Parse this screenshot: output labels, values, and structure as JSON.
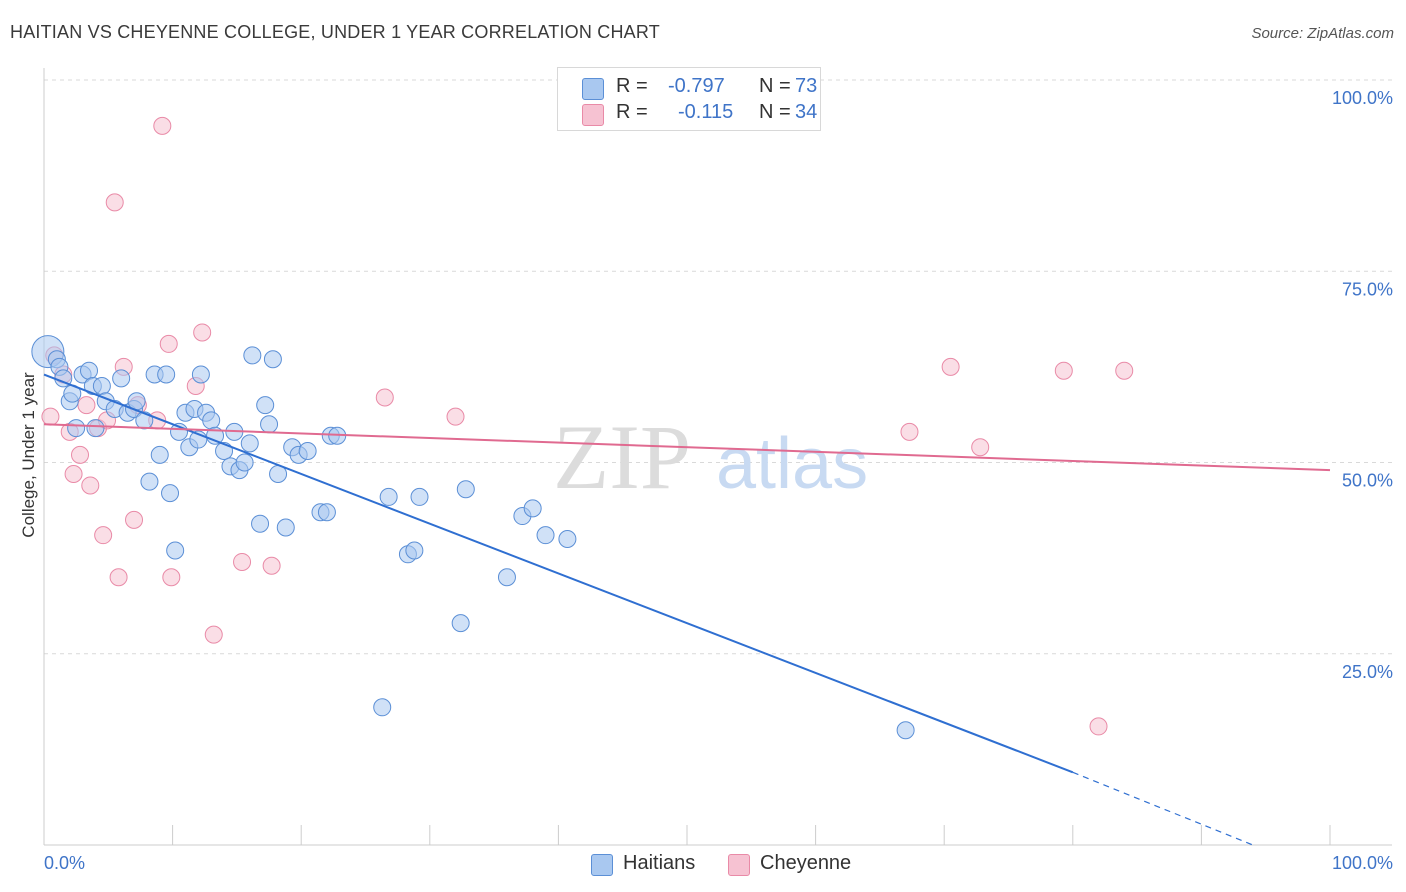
{
  "title": "HAITIAN VS CHEYENNE COLLEGE, UNDER 1 YEAR CORRELATION CHART",
  "source": "Source: ZipAtlas.com",
  "watermark": {
    "zip": "ZIP",
    "atlas": "atlas"
  },
  "colors": {
    "haitians_fill": "#a9c8f0",
    "haitians_stroke": "#5b8fd6",
    "haitians_line": "#2f6fd1",
    "cheyenne_fill": "#f6c2d2",
    "cheyenne_stroke": "#e98aa7",
    "cheyenne_line": "#e06a90",
    "tick_text": "#3f74c8",
    "grid": "#d9d9d9"
  },
  "legend": {
    "rows": [
      {
        "r_label": "R =",
        "r_value": "-0.797",
        "n_label": "N =",
        "n_value": "73"
      },
      {
        "r_label": "R =",
        "r_value": "-0.115",
        "n_label": "N =",
        "n_value": "34"
      }
    ]
  },
  "bottom_legend": {
    "haitians": "Haitians",
    "cheyenne": "Cheyenne"
  },
  "chart_data": {
    "type": "scatter",
    "title": "HAITIAN VS CHEYENNE COLLEGE, UNDER 1 YEAR CORRELATION CHART",
    "xlabel": "",
    "ylabel": "College, Under 1 year",
    "xlim": [
      0,
      100
    ],
    "ylim": [
      0,
      100
    ],
    "x_tick_labels": {
      "left": "0.0%",
      "right": "100.0%"
    },
    "y_ticks": [
      {
        "value": 100,
        "label": "100.0%"
      },
      {
        "value": 75,
        "label": "75.0%"
      },
      {
        "value": 50,
        "label": "50.0%"
      },
      {
        "value": 25,
        "label": "25.0%"
      }
    ],
    "series": [
      {
        "name": "Haitians",
        "r": -0.797,
        "n": 73,
        "trend": {
          "x_start": 0,
          "y_start": 61.5,
          "x_solid_end": 80,
          "y_solid_end": 9.5,
          "x_dash_end": 94,
          "y_dash_end": 0
        },
        "points": [
          {
            "x": 0.3,
            "y": 64.5,
            "big": true
          },
          {
            "x": 1.0,
            "y": 63.5
          },
          {
            "x": 1.2,
            "y": 62.5
          },
          {
            "x": 1.5,
            "y": 61.0
          },
          {
            "x": 2.0,
            "y": 58.0
          },
          {
            "x": 2.2,
            "y": 59.0
          },
          {
            "x": 2.5,
            "y": 54.5
          },
          {
            "x": 3.0,
            "y": 61.5
          },
          {
            "x": 3.5,
            "y": 62.0
          },
          {
            "x": 3.8,
            "y": 60.0
          },
          {
            "x": 4.0,
            "y": 54.5
          },
          {
            "x": 4.5,
            "y": 60.0
          },
          {
            "x": 4.8,
            "y": 58.0
          },
          {
            "x": 5.5,
            "y": 57.0
          },
          {
            "x": 6.0,
            "y": 61.0
          },
          {
            "x": 6.5,
            "y": 56.5
          },
          {
            "x": 7.0,
            "y": 57.0
          },
          {
            "x": 7.2,
            "y": 58.0
          },
          {
            "x": 7.8,
            "y": 55.5
          },
          {
            "x": 8.2,
            "y": 47.5
          },
          {
            "x": 8.6,
            "y": 61.5
          },
          {
            "x": 9.0,
            "y": 51.0
          },
          {
            "x": 9.5,
            "y": 61.5
          },
          {
            "x": 9.8,
            "y": 46.0
          },
          {
            "x": 10.2,
            "y": 38.5
          },
          {
            "x": 10.5,
            "y": 54.0
          },
          {
            "x": 11.0,
            "y": 56.5
          },
          {
            "x": 11.3,
            "y": 52.0
          },
          {
            "x": 11.7,
            "y": 57.0
          },
          {
            "x": 12.0,
            "y": 53.0
          },
          {
            "x": 12.2,
            "y": 61.5
          },
          {
            "x": 12.6,
            "y": 56.5
          },
          {
            "x": 13.0,
            "y": 55.5
          },
          {
            "x": 13.3,
            "y": 53.5
          },
          {
            "x": 14.0,
            "y": 51.5
          },
          {
            "x": 14.5,
            "y": 49.5
          },
          {
            "x": 14.8,
            "y": 54.0
          },
          {
            "x": 15.2,
            "y": 49.0
          },
          {
            "x": 15.6,
            "y": 50.0
          },
          {
            "x": 16.0,
            "y": 52.5
          },
          {
            "x": 16.2,
            "y": 64.0
          },
          {
            "x": 16.8,
            "y": 42.0
          },
          {
            "x": 17.2,
            "y": 57.5
          },
          {
            "x": 17.5,
            "y": 55.0
          },
          {
            "x": 17.8,
            "y": 63.5
          },
          {
            "x": 18.2,
            "y": 48.5
          },
          {
            "x": 18.8,
            "y": 41.5
          },
          {
            "x": 19.3,
            "y": 52.0
          },
          {
            "x": 19.8,
            "y": 51.0
          },
          {
            "x": 20.5,
            "y": 51.5
          },
          {
            "x": 21.5,
            "y": 43.5
          },
          {
            "x": 22.0,
            "y": 43.5
          },
          {
            "x": 22.3,
            "y": 53.5
          },
          {
            "x": 22.8,
            "y": 53.5
          },
          {
            "x": 26.3,
            "y": 18.0
          },
          {
            "x": 26.8,
            "y": 45.5
          },
          {
            "x": 28.3,
            "y": 38.0
          },
          {
            "x": 28.8,
            "y": 38.5
          },
          {
            "x": 29.2,
            "y": 45.5
          },
          {
            "x": 32.4,
            "y": 29.0
          },
          {
            "x": 32.8,
            "y": 46.5
          },
          {
            "x": 36.0,
            "y": 35.0
          },
          {
            "x": 37.2,
            "y": 43.0
          },
          {
            "x": 38.0,
            "y": 44.0
          },
          {
            "x": 39.0,
            "y": 40.5
          },
          {
            "x": 40.7,
            "y": 40.0
          },
          {
            "x": 67.0,
            "y": 15.0
          }
        ]
      },
      {
        "name": "Cheyenne",
        "r": -0.115,
        "n": 34,
        "trend": {
          "x_start": 0,
          "y_start": 55.0,
          "x_end": 100,
          "y_end": 49.0
        },
        "points": [
          {
            "x": 0.5,
            "y": 56.0
          },
          {
            "x": 0.8,
            "y": 64.0
          },
          {
            "x": 1.5,
            "y": 61.5
          },
          {
            "x": 2.0,
            "y": 54.0
          },
          {
            "x": 2.3,
            "y": 48.5
          },
          {
            "x": 2.8,
            "y": 51.0
          },
          {
            "x": 3.3,
            "y": 57.5
          },
          {
            "x": 3.6,
            "y": 47.0
          },
          {
            "x": 4.2,
            "y": 54.5
          },
          {
            "x": 4.6,
            "y": 40.5
          },
          {
            "x": 4.9,
            "y": 55.5
          },
          {
            "x": 5.5,
            "y": 84.0
          },
          {
            "x": 5.8,
            "y": 35.0
          },
          {
            "x": 6.2,
            "y": 62.5
          },
          {
            "x": 7.0,
            "y": 42.5
          },
          {
            "x": 7.3,
            "y": 57.5
          },
          {
            "x": 8.8,
            "y": 55.5
          },
          {
            "x": 9.2,
            "y": 94.0
          },
          {
            "x": 9.7,
            "y": 65.5
          },
          {
            "x": 9.9,
            "y": 35.0
          },
          {
            "x": 11.8,
            "y": 60.0
          },
          {
            "x": 12.3,
            "y": 67.0
          },
          {
            "x": 13.2,
            "y": 27.5
          },
          {
            "x": 15.4,
            "y": 37.0
          },
          {
            "x": 17.7,
            "y": 36.5
          },
          {
            "x": 26.5,
            "y": 58.5
          },
          {
            "x": 32.0,
            "y": 56.0
          },
          {
            "x": 67.3,
            "y": 54.0
          },
          {
            "x": 70.5,
            "y": 62.5
          },
          {
            "x": 72.8,
            "y": 52.0
          },
          {
            "x": 79.3,
            "y": 62.0
          },
          {
            "x": 84.0,
            "y": 62.0
          },
          {
            "x": 82.0,
            "y": 15.5
          }
        ]
      }
    ]
  }
}
